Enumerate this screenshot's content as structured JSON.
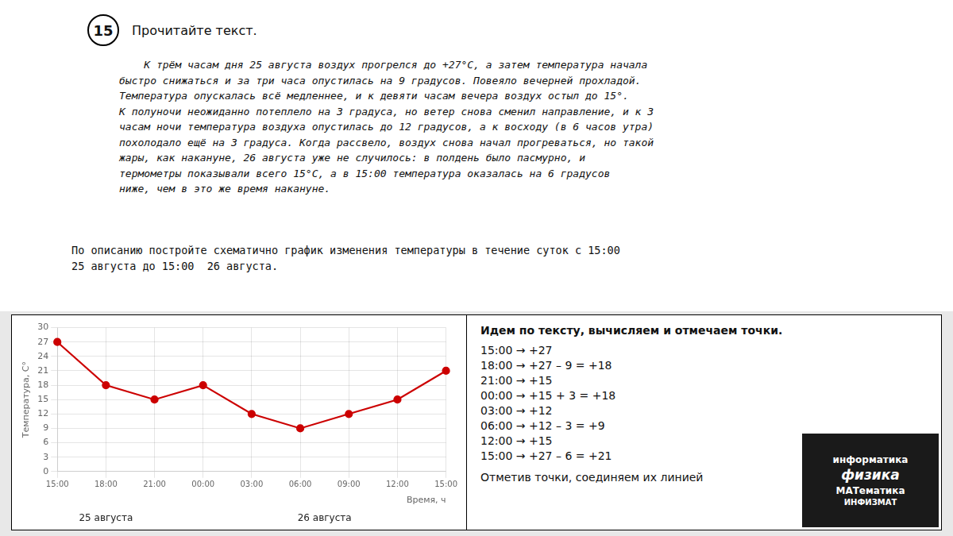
{
  "chart_data": {
    "type": "line",
    "title_number": "15",
    "title": "Прочитайте текст.",
    "paragraph": "    К трём часам дня 25 августа воздух прогрелся до +27°С, а затем температура начала\nбыстро снижаться и за три часа опустилась на 9 градусов. Повеяло вечерней прохладой.\nТемпература опускалась всё медленнее, и к девяти часам вечера воздух остыл до 15°.\nК полуночи неожиданно потеплело на 3 градуса, но ветер снова сменил направление, и к 3\nчасам ночи температура воздуха опустилась до 12 градусов, а к восходу (в 6 часов утра)\nпохолодало ещё на 3 градуса. Когда рассвело, воздух снова начал прогреваться, но такой\nжары, как накануне, 26 августа уже не случилось: в полдень было пасмурно, и\nтермометры показывали всего 15°С, а в 15:00 температура оказалась на 6 градусов\nниже, чем в это же время накануне.",
    "task": "По описанию постройте схематично график изменения температуры в течение суток с 15:00\n25 августа до 15:00  26 августа.",
    "x_label": "Время, ч",
    "y_label": "Температура, С°",
    "categories": [
      "15:00",
      "18:00",
      "21:00",
      "00:00",
      "03:00",
      "06:00",
      "09:00",
      "12:00",
      "15:00"
    ],
    "values": [
      27,
      18,
      15,
      18,
      12,
      9,
      12,
      15,
      21
    ],
    "color": "#CC0000",
    "marker": "circle",
    "ylim": [
      0,
      30
    ],
    "yticks": [
      0,
      3,
      6,
      9,
      12,
      15,
      18,
      21,
      24,
      27,
      30
    ],
    "grid": true,
    "date_labels": [
      "25 августа",
      "26 августа"
    ],
    "solution_header": "Идем по тексту, вычисляем и отмечаем точки.",
    "solution_lines": [
      "15:00 → +27",
      "18:00 → +27 – 9 = +18",
      "21:00 → +15",
      "00:00 → +15 + 3 = +18",
      "03:00 → +12",
      "06:00 → +12 – 3 = +9",
      "12:00 → +15",
      "15:00 → +27 – 6 = +21"
    ],
    "solution_footer": "Отметив точки, соединяем их линией",
    "logo_lines": [
      "информатика",
      "физика",
      "МАТематика",
      "ИНФИЗМАТ"
    ]
  }
}
